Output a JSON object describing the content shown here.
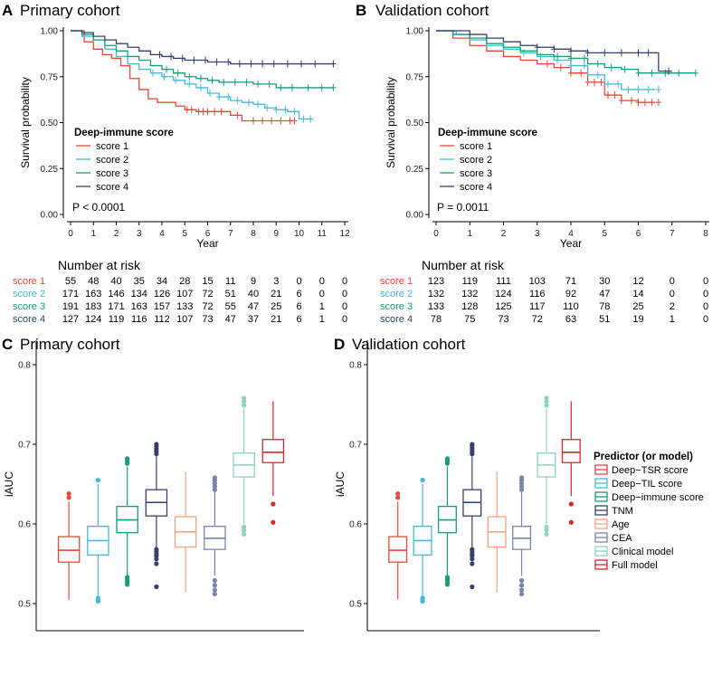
{
  "chart_data": [
    {
      "panel": "A",
      "title": "Primary cohort",
      "type": "line",
      "subtype": "kaplan-meier",
      "xlabel": "Year",
      "ylabel": "Survival probability",
      "xlim": [
        0,
        12
      ],
      "ylim": [
        0,
        1
      ],
      "xticks": [
        "0",
        "1",
        "2",
        "3",
        "4",
        "5",
        "6",
        "7",
        "8",
        "9",
        "10",
        "11",
        "12"
      ],
      "yticks": [
        "0.00",
        "0.25",
        "0.50",
        "0.75",
        "1.00"
      ],
      "legend_title": "Deep-immune score",
      "pvalue": "P < 0.0001",
      "series": [
        {
          "name": "score 1",
          "color": "#e8473a",
          "x": [
            0,
            0.6,
            1.0,
            1.4,
            1.8,
            2.2,
            2.6,
            3.0,
            3.4,
            3.8,
            4.2,
            4.6,
            5.0,
            5.5,
            6.0,
            7.0,
            7.5,
            9.0,
            9.8
          ],
          "y": [
            1.0,
            0.94,
            0.9,
            0.87,
            0.85,
            0.81,
            0.74,
            0.68,
            0.63,
            0.61,
            0.61,
            0.59,
            0.57,
            0.56,
            0.56,
            0.54,
            0.51,
            0.51,
            0.51
          ],
          "censor_x": [
            5.1,
            5.3,
            5.6,
            5.8,
            6.0,
            6.3,
            6.6,
            7.3,
            8.0,
            8.4,
            8.8,
            9.2,
            9.6,
            9.8
          ]
        },
        {
          "name": "score 2",
          "color": "#47b9d9",
          "x": [
            0,
            0.5,
            1.0,
            1.5,
            2.0,
            2.5,
            3.0,
            3.5,
            4.0,
            4.5,
            5.0,
            5.5,
            6.0,
            6.5,
            7.0,
            7.5,
            8.0,
            8.5,
            9.0,
            9.5,
            10.0,
            10.5
          ],
          "y": [
            1.0,
            0.97,
            0.95,
            0.9,
            0.86,
            0.82,
            0.79,
            0.77,
            0.75,
            0.73,
            0.71,
            0.69,
            0.66,
            0.64,
            0.62,
            0.61,
            0.6,
            0.58,
            0.57,
            0.56,
            0.52,
            0.52
          ],
          "censor_x": [
            3.6,
            4.1,
            4.6,
            5.2,
            5.7,
            6.1,
            6.5,
            6.9,
            7.3,
            7.8,
            8.2,
            8.6,
            9.0,
            9.4,
            9.8,
            10.2,
            10.5
          ]
        },
        {
          "name": "score 3",
          "color": "#1a9b7c",
          "x": [
            0,
            0.5,
            1.0,
            1.5,
            2.0,
            2.5,
            3.0,
            3.5,
            4.0,
            4.5,
            5.0,
            5.5,
            6.0,
            6.5,
            7.0,
            8.0,
            9.0,
            10.0,
            11.5
          ],
          "y": [
            1.0,
            0.98,
            0.95,
            0.92,
            0.89,
            0.86,
            0.84,
            0.81,
            0.79,
            0.77,
            0.75,
            0.74,
            0.73,
            0.72,
            0.72,
            0.71,
            0.69,
            0.69,
            0.69
          ],
          "censor_x": [
            4.2,
            4.7,
            5.2,
            5.7,
            6.2,
            6.7,
            7.2,
            7.7,
            8.2,
            8.7,
            9.2,
            9.7,
            10.4,
            11.0,
            11.5
          ]
        },
        {
          "name": "score 4",
          "color": "#34406e",
          "x": [
            0,
            0.5,
            1.0,
            1.5,
            2.0,
            2.5,
            3.0,
            3.5,
            4.0,
            4.5,
            5.0,
            6.0,
            7.0,
            8.0,
            9.0,
            10.0,
            11.5
          ],
          "y": [
            1.0,
            0.99,
            0.97,
            0.95,
            0.93,
            0.91,
            0.89,
            0.87,
            0.86,
            0.85,
            0.84,
            0.83,
            0.82,
            0.82,
            0.82,
            0.82,
            0.82
          ],
          "censor_x": [
            3.9,
            4.4,
            4.9,
            5.4,
            5.9,
            6.4,
            6.9,
            7.4,
            7.9,
            8.4,
            8.9,
            9.5,
            10.1,
            10.7,
            11.5
          ]
        }
      ]
    },
    {
      "panel": "B",
      "title": "Validation cohort",
      "type": "line",
      "subtype": "kaplan-meier",
      "xlabel": "Year",
      "ylabel": "Survival probability",
      "xlim": [
        0,
        8
      ],
      "ylim": [
        0,
        1
      ],
      "xticks": [
        "0",
        "1",
        "2",
        "3",
        "4",
        "5",
        "6",
        "7",
        "8"
      ],
      "yticks": [
        "0.00",
        "0.25",
        "0.50",
        "0.75",
        "1.00"
      ],
      "legend_title": "Deep-immune score",
      "pvalue": "P = 0.0011",
      "series": [
        {
          "name": "score 1",
          "color": "#e8473a",
          "x": [
            0,
            0.5,
            1.0,
            1.5,
            2.0,
            2.5,
            3.0,
            3.5,
            4.0,
            4.5,
            5.0,
            5.5,
            6.0,
            6.5
          ],
          "y": [
            1.0,
            0.96,
            0.92,
            0.89,
            0.86,
            0.84,
            0.82,
            0.8,
            0.77,
            0.72,
            0.65,
            0.62,
            0.61,
            0.61
          ],
          "censor_x": [
            3.3,
            3.7,
            4.0,
            4.3,
            4.5,
            4.7,
            4.9,
            5.1,
            5.3,
            5.5,
            5.8,
            6.0,
            6.2,
            6.4,
            6.6
          ]
        },
        {
          "name": "score 2",
          "color": "#47b9d9",
          "x": [
            0,
            0.6,
            1.0,
            1.5,
            2.0,
            2.5,
            3.0,
            3.5,
            4.0,
            4.5,
            5.0,
            5.5,
            6.0,
            6.5
          ],
          "y": [
            1.0,
            0.98,
            0.95,
            0.92,
            0.9,
            0.88,
            0.86,
            0.84,
            0.81,
            0.76,
            0.71,
            0.68,
            0.68,
            0.68
          ],
          "censor_x": [
            2.6,
            3.1,
            3.6,
            4.0,
            4.4,
            4.8,
            5.1,
            5.4,
            5.7,
            6.0,
            6.3,
            6.6
          ]
        },
        {
          "name": "score 3",
          "color": "#1a9b7c",
          "x": [
            0,
            0.5,
            1.0,
            1.5,
            2.0,
            2.5,
            3.0,
            3.5,
            4.0,
            4.5,
            5.0,
            5.5,
            6.0,
            6.5,
            7.0,
            7.7
          ],
          "y": [
            1.0,
            0.98,
            0.96,
            0.93,
            0.91,
            0.89,
            0.87,
            0.86,
            0.85,
            0.82,
            0.8,
            0.79,
            0.77,
            0.77,
            0.77,
            0.77
          ],
          "censor_x": [
            3.6,
            4.0,
            4.4,
            4.8,
            5.2,
            5.6,
            6.0,
            6.4,
            6.8,
            7.2,
            7.7
          ]
        },
        {
          "name": "score 4",
          "color": "#34406e",
          "x": [
            0,
            1.0,
            1.5,
            2.0,
            2.5,
            3.0,
            3.5,
            4.0,
            4.5,
            5.0,
            5.5,
            6.0,
            6.5,
            6.6,
            7.0
          ],
          "y": [
            1.0,
            0.98,
            0.96,
            0.94,
            0.92,
            0.91,
            0.9,
            0.89,
            0.88,
            0.88,
            0.88,
            0.88,
            0.88,
            0.78,
            0.78
          ],
          "censor_x": [
            3.0,
            3.5,
            4.0,
            4.5,
            5.0,
            5.5,
            6.0,
            6.3,
            6.9
          ]
        }
      ]
    },
    {
      "panel": "A-risk",
      "type": "table",
      "title": "Number at risk",
      "rows": [
        {
          "label": "score 1",
          "color": "#e8473a",
          "values": [
            "55",
            "48",
            "40",
            "35",
            "34",
            "28",
            "15",
            "11",
            "9",
            "3",
            "0",
            "0",
            "0"
          ]
        },
        {
          "label": "score 2",
          "color": "#47b9d9",
          "values": [
            "171",
            "163",
            "146",
            "134",
            "126",
            "107",
            "72",
            "51",
            "40",
            "21",
            "6",
            "0",
            "0"
          ]
        },
        {
          "label": "score 3",
          "color": "#1a9b7c",
          "values": [
            "191",
            "183",
            "171",
            "163",
            "157",
            "133",
            "72",
            "55",
            "47",
            "25",
            "6",
            "1",
            "0"
          ]
        },
        {
          "label": "score 4",
          "color": "#34406e",
          "values": [
            "127",
            "124",
            "119",
            "116",
            "112",
            "107",
            "73",
            "47",
            "37",
            "21",
            "6",
            "1",
            "0"
          ]
        }
      ]
    },
    {
      "panel": "B-risk",
      "type": "table",
      "title": "Number at risk",
      "rows": [
        {
          "label": "score 1",
          "color": "#e8473a",
          "values": [
            "123",
            "119",
            "111",
            "103",
            "71",
            "30",
            "12",
            "0",
            "0"
          ]
        },
        {
          "label": "score 2",
          "color": "#47b9d9",
          "values": [
            "132",
            "132",
            "124",
            "116",
            "92",
            "47",
            "14",
            "0",
            "0"
          ]
        },
        {
          "label": "score 3",
          "color": "#1a9b7c",
          "values": [
            "133",
            "128",
            "125",
            "117",
            "110",
            "78",
            "25",
            "2",
            "0"
          ]
        },
        {
          "label": "score 4",
          "color": "#34406e",
          "values": [
            "78",
            "75",
            "73",
            "72",
            "63",
            "51",
            "19",
            "1",
            "0"
          ]
        }
      ]
    },
    {
      "panel": "C",
      "title": "Primary cohort",
      "type": "box",
      "ylabel": "iAUC",
      "ylim": [
        0.5,
        0.8
      ],
      "yticks": [
        "0.5",
        "0.6",
        "0.7",
        "0.8"
      ],
      "series": [
        {
          "name": "Deep−TSR score",
          "color": "#e8473a",
          "min": 0.505,
          "q1": 0.552,
          "median": 0.567,
          "q3": 0.584,
          "max": 0.628,
          "outliers": [
            0.633,
            0.638
          ]
        },
        {
          "name": "Deep−TIL score",
          "color": "#47b9d9",
          "min": 0.51,
          "q1": 0.561,
          "median": 0.579,
          "q3": 0.597,
          "max": 0.65,
          "outliers": [
            0.503,
            0.505,
            0.507,
            0.655
          ]
        },
        {
          "name": "Deep−immune score",
          "color": "#1a9b7c",
          "min": 0.535,
          "q1": 0.589,
          "median": 0.605,
          "q3": 0.622,
          "max": 0.672,
          "outliers": [
            0.524,
            0.527,
            0.53,
            0.533,
            0.676,
            0.679,
            0.682
          ]
        },
        {
          "name": "TNM",
          "color": "#34406e",
          "min": 0.57,
          "q1": 0.61,
          "median": 0.627,
          "q3": 0.643,
          "max": 0.685,
          "outliers": [
            0.521,
            0.55,
            0.556,
            0.56,
            0.562,
            0.565,
            0.568,
            0.688,
            0.691,
            0.694,
            0.697,
            0.7
          ]
        },
        {
          "name": "Age",
          "color": "#f4a582",
          "min": 0.514,
          "q1": 0.571,
          "median": 0.59,
          "q3": 0.609,
          "max": 0.666,
          "outliers": []
        },
        {
          "name": "CEA",
          "color": "#7a84a8",
          "min": 0.535,
          "q1": 0.568,
          "median": 0.582,
          "q3": 0.597,
          "max": 0.64,
          "outliers": [
            0.512,
            0.517,
            0.523,
            0.529,
            0.643,
            0.647,
            0.651,
            0.655,
            0.658
          ]
        },
        {
          "name": "Clinical model",
          "color": "#8fd3c2",
          "min": 0.6,
          "q1": 0.659,
          "median": 0.674,
          "q3": 0.689,
          "max": 0.745,
          "outliers": [
            0.587,
            0.592,
            0.596,
            0.749,
            0.754,
            0.758
          ]
        },
        {
          "name": "Full model",
          "color": "#d6262b",
          "min": 0.635,
          "q1": 0.677,
          "median": 0.69,
          "q3": 0.706,
          "max": 0.754,
          "outliers": [
            0.602,
            0.625
          ]
        }
      ]
    },
    {
      "panel": "D",
      "title": "Validation cohort",
      "type": "box",
      "ylabel": "iAUC",
      "ylim": [
        0.5,
        0.8
      ],
      "yticks": [
        "0.5",
        "0.6",
        "0.7",
        "0.8"
      ],
      "legend_title": "Predictor (or model)",
      "series": [
        {
          "name": "Deep−TSR score",
          "color": "#e8473a",
          "min": 0.505,
          "q1": 0.552,
          "median": 0.567,
          "q3": 0.584,
          "max": 0.628,
          "outliers": [
            0.633,
            0.638
          ]
        },
        {
          "name": "Deep−TIL score",
          "color": "#47b9d9",
          "min": 0.51,
          "q1": 0.561,
          "median": 0.579,
          "q3": 0.597,
          "max": 0.65,
          "outliers": [
            0.503,
            0.505,
            0.507,
            0.655
          ]
        },
        {
          "name": "Deep−immune score",
          "color": "#1a9b7c",
          "min": 0.535,
          "q1": 0.589,
          "median": 0.605,
          "q3": 0.622,
          "max": 0.672,
          "outliers": [
            0.524,
            0.527,
            0.53,
            0.533,
            0.676,
            0.679,
            0.682
          ]
        },
        {
          "name": "TNM",
          "color": "#34406e",
          "min": 0.57,
          "q1": 0.61,
          "median": 0.627,
          "q3": 0.643,
          "max": 0.685,
          "outliers": [
            0.521,
            0.55,
            0.556,
            0.56,
            0.562,
            0.565,
            0.568,
            0.688,
            0.691,
            0.694,
            0.697,
            0.7
          ]
        },
        {
          "name": "Age",
          "color": "#f4a582",
          "min": 0.514,
          "q1": 0.571,
          "median": 0.59,
          "q3": 0.609,
          "max": 0.666,
          "outliers": []
        },
        {
          "name": "CEA",
          "color": "#7a84a8",
          "min": 0.535,
          "q1": 0.568,
          "median": 0.582,
          "q3": 0.597,
          "max": 0.64,
          "outliers": [
            0.512,
            0.517,
            0.523,
            0.529,
            0.643,
            0.647,
            0.651,
            0.655,
            0.658
          ]
        },
        {
          "name": "Clinical model",
          "color": "#8fd3c2",
          "min": 0.6,
          "q1": 0.659,
          "median": 0.674,
          "q3": 0.689,
          "max": 0.745,
          "outliers": [
            0.587,
            0.592,
            0.596,
            0.749,
            0.754,
            0.758
          ]
        },
        {
          "name": "Full model",
          "color": "#d6262b",
          "min": 0.635,
          "q1": 0.677,
          "median": 0.69,
          "q3": 0.706,
          "max": 0.754,
          "outliers": [
            0.602,
            0.625
          ]
        }
      ]
    }
  ]
}
